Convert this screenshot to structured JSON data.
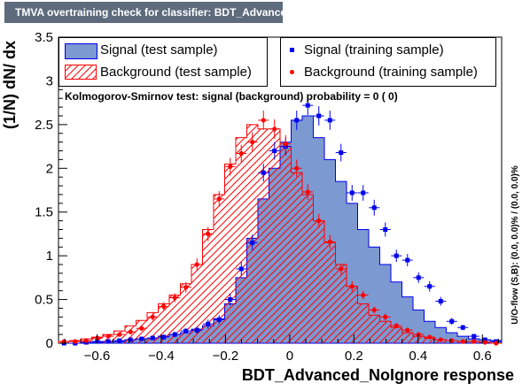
{
  "title": "TMVA overtraining check for classifier: BDT_Advanced_NoIgnore",
  "colors": {
    "signal_fill": "#7d99d1",
    "signal_line": "#0000ee",
    "background_hatch": "#ff0000",
    "title_bg": "#5d6b7d"
  },
  "legend": {
    "signal_test": "Signal (test sample)",
    "background_test": "Background (test sample)",
    "signal_train": "Signal (training sample)",
    "background_train": "Background (training sample)"
  },
  "ks_text": "Kolmogorov-Smirnov test: signal (background) probability =     0 (    0)",
  "overflow_text": "U/O-flow (S,B): (0.0, 0.0)% / (0.0, 0.0)%",
  "chart_data": {
    "type": "bar",
    "xlabel": "BDT_Advanced_NoIgnore response",
    "ylabel": "(1/N) dN/ dx",
    "xlim": [
      -0.72,
      0.66
    ],
    "ylim": [
      0,
      3.5
    ],
    "x_ticks": [
      -0.6,
      -0.4,
      -0.2,
      0,
      0.2,
      0.4,
      0.6
    ],
    "x_tick_labels": [
      "−0.6",
      "−0.4",
      "−0.2",
      "0",
      "0.2",
      "0.4",
      "0.6"
    ],
    "y_ticks": [
      0,
      0.5,
      1,
      1.5,
      2,
      2.5,
      3,
      3.5
    ],
    "y_tick_labels": [
      "0",
      "0.5",
      "1",
      "1.5",
      "2",
      "2.5",
      "3",
      "3.5"
    ],
    "bin_edges": [
      -0.72,
      -0.6855,
      -0.651,
      -0.6165,
      -0.582,
      -0.5475,
      -0.513,
      -0.4785,
      -0.444,
      -0.4095,
      -0.375,
      -0.3405,
      -0.306,
      -0.2715,
      -0.237,
      -0.2025,
      -0.168,
      -0.1335,
      -0.099,
      -0.0645,
      -0.03,
      0.0045,
      0.039,
      0.0735,
      0.108,
      0.1425,
      0.177,
      0.2115,
      0.246,
      0.2805,
      0.315,
      0.3495,
      0.384,
      0.4185,
      0.453,
      0.4875,
      0.522,
      0.5565,
      0.591,
      0.6255,
      0.66
    ],
    "series": [
      {
        "name": "Signal (test sample)",
        "style": "filled",
        "values": [
          0.0,
          0.0,
          0.01,
          0.01,
          0.02,
          0.02,
          0.04,
          0.05,
          0.06,
          0.08,
          0.1,
          0.12,
          0.16,
          0.2,
          0.28,
          0.45,
          0.75,
          1.2,
          1.65,
          2.0,
          2.3,
          2.55,
          2.6,
          2.35,
          2.1,
          1.85,
          1.6,
          1.3,
          1.1,
          0.9,
          0.7,
          0.53,
          0.38,
          0.25,
          0.18,
          0.12,
          0.08,
          0.05,
          0.04,
          0.03
        ]
      },
      {
        "name": "Background (test sample)",
        "style": "hatched",
        "values": [
          0.02,
          0.03,
          0.05,
          0.07,
          0.1,
          0.14,
          0.2,
          0.26,
          0.35,
          0.45,
          0.55,
          0.68,
          0.9,
          1.3,
          1.7,
          2.05,
          2.35,
          2.5,
          2.45,
          2.45,
          2.25,
          1.95,
          1.7,
          1.4,
          1.15,
          0.9,
          0.65,
          0.45,
          0.32,
          0.25,
          0.18,
          0.12,
          0.08,
          0.06,
          0.04,
          0.03,
          0.02,
          0.02,
          0.01,
          0.0
        ]
      },
      {
        "name": "Signal (training sample)",
        "style": "points",
        "values": [
          0.0,
          0.0,
          0.01,
          0.02,
          0.02,
          0.03,
          0.04,
          0.05,
          0.06,
          0.07,
          0.1,
          0.14,
          0.15,
          0.22,
          0.27,
          0.5,
          0.85,
          1.15,
          1.95,
          2.2,
          2.25,
          2.55,
          2.72,
          2.6,
          2.55,
          2.18,
          1.72,
          1.72,
          1.55,
          1.3,
          1.0,
          0.95,
          0.75,
          0.65,
          0.48,
          0.25,
          0.18,
          0.08,
          0.04,
          0.02
        ],
        "errors": [
          0.0,
          0.0,
          0.01,
          0.01,
          0.01,
          0.02,
          0.02,
          0.02,
          0.02,
          0.03,
          0.03,
          0.03,
          0.04,
          0.05,
          0.05,
          0.07,
          0.08,
          0.09,
          0.1,
          0.1,
          0.1,
          0.11,
          0.11,
          0.11,
          0.11,
          0.1,
          0.09,
          0.09,
          0.09,
          0.08,
          0.07,
          0.07,
          0.06,
          0.06,
          0.05,
          0.04,
          0.03,
          0.02,
          0.02,
          0.01
        ]
      },
      {
        "name": "Background (training sample)",
        "style": "points",
        "values": [
          0.02,
          0.02,
          0.03,
          0.06,
          0.08,
          0.1,
          0.13,
          0.17,
          0.3,
          0.42,
          0.52,
          0.64,
          0.9,
          1.25,
          1.65,
          2.02,
          2.17,
          2.3,
          2.55,
          2.45,
          2.28,
          2.0,
          1.73,
          1.4,
          1.16,
          0.85,
          0.65,
          0.55,
          0.38,
          0.3,
          0.2,
          0.15,
          0.1,
          0.07,
          0.04,
          0.03,
          0.02,
          0.02,
          0.01,
          0.0
        ],
        "errors": [
          0.01,
          0.01,
          0.01,
          0.02,
          0.02,
          0.02,
          0.03,
          0.03,
          0.04,
          0.05,
          0.05,
          0.06,
          0.07,
          0.08,
          0.09,
          0.1,
          0.1,
          0.11,
          0.11,
          0.11,
          0.1,
          0.1,
          0.09,
          0.08,
          0.08,
          0.06,
          0.06,
          0.05,
          0.04,
          0.04,
          0.03,
          0.03,
          0.02,
          0.02,
          0.01,
          0.01,
          0.01,
          0.01,
          0.01,
          0.0
        ]
      }
    ]
  }
}
